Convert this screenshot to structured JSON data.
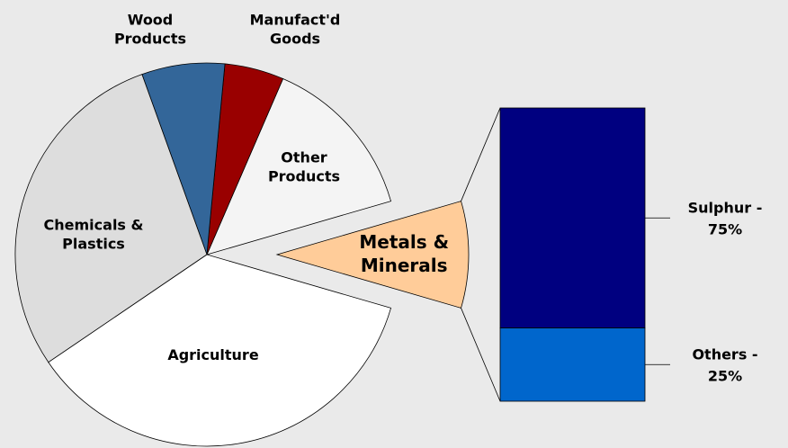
{
  "chart_data": {
    "type": "pie-of-bar",
    "categories": [
      "Metals &\nMinerals",
      "Other\nProducts",
      "Manufact'd\nGoods",
      "Wood\nProducts",
      "Chemicals &\nPlastics",
      "Agriculture"
    ],
    "values": [
      9,
      14,
      5,
      7,
      29,
      36
    ],
    "colors": [
      "#ffcc99",
      "#f4f4f4",
      "#990000",
      "#336699",
      "#dddddd",
      "#ffffff"
    ],
    "bar": {
      "categories": [
        "Sulphur -",
        "Others -"
      ],
      "values": [
        75,
        25
      ],
      "value_labels": [
        "75%",
        "25%"
      ],
      "colors": [
        "#000080",
        "#0066cc"
      ]
    }
  }
}
